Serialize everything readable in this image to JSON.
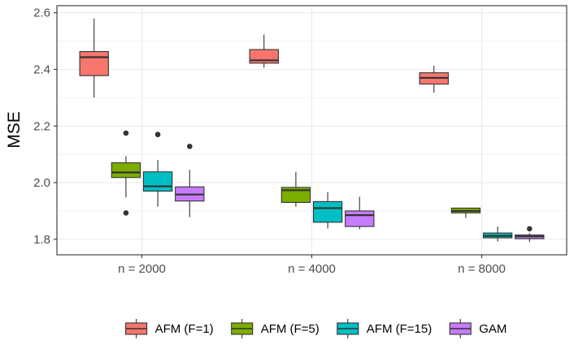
{
  "chart_data": {
    "type": "boxplot",
    "title": "",
    "xlabel": "",
    "ylabel": "MSE",
    "ylim": [
      1.745,
      2.625
    ],
    "yticks": [
      1.8,
      2.0,
      2.2,
      2.4,
      2.6
    ],
    "ytick_labels": [
      "1.8",
      "2.0",
      "2.2",
      "2.4",
      "2.6"
    ],
    "categories": [
      "n = 2000",
      "n = 4000",
      "n = 8000"
    ],
    "grid": true,
    "legend_position": "bottom",
    "series": [
      {
        "name": "AFM (F=1)",
        "color": "#F8766D",
        "boxes": [
          {
            "whisker_low": 2.3,
            "q1": 2.378,
            "median": 2.443,
            "q3": 2.463,
            "whisker_high": 2.58,
            "outliers": []
          },
          {
            "whisker_low": 2.406,
            "q1": 2.422,
            "median": 2.432,
            "q3": 2.47,
            "whisker_high": 2.523,
            "outliers": []
          },
          {
            "whisker_low": 2.318,
            "q1": 2.348,
            "median": 2.37,
            "q3": 2.388,
            "whisker_high": 2.413,
            "outliers": []
          }
        ]
      },
      {
        "name": "AFM (F=5)",
        "color": "#7CAE00",
        "boxes": [
          {
            "whisker_low": 1.948,
            "q1": 2.018,
            "median": 2.036,
            "q3": 2.07,
            "whisker_high": 2.093,
            "outliers": [
              2.175,
              1.893
            ]
          },
          {
            "whisker_low": 1.915,
            "q1": 1.93,
            "median": 1.973,
            "q3": 1.983,
            "whisker_high": 2.038,
            "outliers": []
          },
          {
            "whisker_low": 1.875,
            "q1": 1.893,
            "median": 1.9,
            "q3": 1.91,
            "whisker_high": 1.91,
            "outliers": []
          }
        ]
      },
      {
        "name": "AFM (F=15)",
        "color": "#00BFC4",
        "boxes": [
          {
            "whisker_low": 1.915,
            "q1": 1.97,
            "median": 1.987,
            "q3": 2.038,
            "whisker_high": 2.08,
            "outliers": [
              2.17
            ]
          },
          {
            "whisker_low": 1.838,
            "q1": 1.86,
            "median": 1.91,
            "q3": 1.933,
            "whisker_high": 1.966,
            "outliers": []
          },
          {
            "whisker_low": 1.792,
            "q1": 1.805,
            "median": 1.812,
            "q3": 1.822,
            "whisker_high": 1.845,
            "outliers": []
          }
        ]
      },
      {
        "name": "GAM",
        "color": "#C77CFF",
        "boxes": [
          {
            "whisker_low": 1.878,
            "q1": 1.935,
            "median": 1.958,
            "q3": 1.985,
            "whisker_high": 2.045,
            "outliers": [
              2.128
            ]
          },
          {
            "whisker_low": 1.835,
            "q1": 1.845,
            "median": 1.885,
            "q3": 1.9,
            "whisker_high": 1.95,
            "outliers": []
          },
          {
            "whisker_low": 1.79,
            "q1": 1.802,
            "median": 1.81,
            "q3": 1.815,
            "whisker_high": 1.822,
            "outliers": [
              1.837
            ]
          }
        ]
      }
    ]
  }
}
